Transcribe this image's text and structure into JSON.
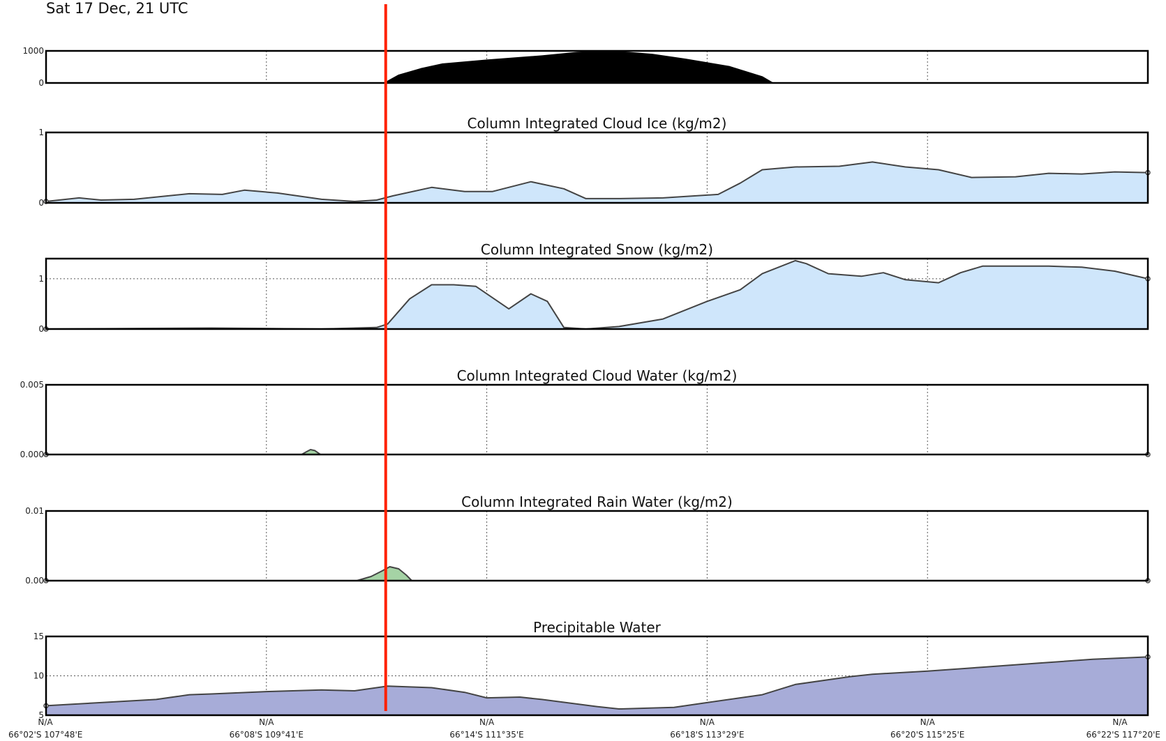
{
  "header": {
    "timestamp": "Sat 17 Dec, 21 UTC"
  },
  "chart_data": [
    {
      "type": "area",
      "title": "",
      "xlim": [
        0,
        100
      ],
      "ylim": [
        0,
        1000
      ],
      "yticks": [
        "0",
        "1000"
      ],
      "ytick_values": [
        0,
        1000
      ],
      "color": "#000000",
      "x": [
        0,
        30.7,
        31,
        32,
        34,
        36,
        40,
        45,
        48,
        50,
        52,
        55,
        58,
        62,
        65,
        66,
        70,
        100
      ],
      "values": [
        0,
        0,
        60,
        250,
        450,
        600,
        720,
        850,
        950,
        1000,
        980,
        900,
        750,
        520,
        200,
        0,
        0,
        0
      ]
    },
    {
      "type": "area",
      "title": "Column Integrated Cloud Ice (kg/m2)",
      "xlim": [
        0,
        100
      ],
      "ylim": [
        0,
        1
      ],
      "yticks": [
        "0",
        "1"
      ],
      "ytick_values": [
        0,
        1
      ],
      "color": "#cfe6fb",
      "x": [
        0,
        3,
        5,
        8,
        13,
        16,
        18,
        21,
        25,
        28,
        30,
        31.5,
        35,
        38,
        40.5,
        44,
        47,
        49,
        52,
        56,
        61,
        63,
        65,
        68,
        72,
        75,
        78,
        81,
        84,
        88,
        91,
        94,
        97,
        100
      ],
      "values": [
        0.02,
        0.07,
        0.04,
        0.05,
        0.13,
        0.12,
        0.18,
        0.14,
        0.05,
        0.02,
        0.04,
        0.1,
        0.22,
        0.16,
        0.16,
        0.3,
        0.2,
        0.06,
        0.06,
        0.07,
        0.12,
        0.28,
        0.47,
        0.51,
        0.52,
        0.58,
        0.51,
        0.47,
        0.36,
        0.37,
        0.42,
        0.41,
        0.44,
        0.43
      ]
    },
    {
      "type": "area",
      "title": "Column Integrated Snow (kg/m2)",
      "xlim": [
        0,
        100
      ],
      "ylim": [
        0,
        1.4
      ],
      "yticks": [
        "0",
        "1"
      ],
      "ytick_values": [
        0,
        1
      ],
      "color": "#cfe6fb",
      "x": [
        0,
        15,
        20,
        25,
        30,
        31,
        33,
        35,
        37,
        39,
        42,
        44,
        45.5,
        47,
        49,
        52,
        56,
        60,
        63,
        65,
        68,
        69,
        71,
        74,
        76,
        78,
        81,
        83,
        85,
        88,
        91,
        94,
        97,
        100
      ],
      "values": [
        0,
        0.02,
        0.01,
        0,
        0.03,
        0.1,
        0.6,
        0.88,
        0.88,
        0.85,
        0.4,
        0.7,
        0.55,
        0.03,
        0,
        0.05,
        0.2,
        0.55,
        0.78,
        1.1,
        1.36,
        1.3,
        1.1,
        1.05,
        1.12,
        0.98,
        0.92,
        1.12,
        1.25,
        1.25,
        1.25,
        1.23,
        1.15,
        1.0
      ]
    },
    {
      "type": "area",
      "title": "Column Integrated Cloud Water (kg/m2)",
      "xlim": [
        0,
        100
      ],
      "ylim": [
        0,
        0.005
      ],
      "yticks": [
        "0.000",
        "0.005"
      ],
      "ytick_values": [
        0,
        0.005
      ],
      "color": "#a5d3a5",
      "x": [
        0,
        23.2,
        23.6,
        24,
        24.4,
        24.9,
        100
      ],
      "values": [
        0,
        0,
        0.00018,
        0.00035,
        0.00028,
        0,
        0
      ]
    },
    {
      "type": "area",
      "title": "Column Integrated Rain Water (kg/m2)",
      "xlim": [
        0,
        100
      ],
      "ylim": [
        0,
        0.01
      ],
      "yticks": [
        "0.00",
        "0.01"
      ],
      "ytick_values": [
        0,
        0.01
      ],
      "color": "#a5d3a5",
      "x": [
        0,
        28.2,
        29.5,
        30.5,
        31.2,
        32,
        32.7,
        33.2,
        100
      ],
      "values": [
        0,
        0,
        0.0006,
        0.0014,
        0.002,
        0.0017,
        0.0008,
        0,
        0
      ]
    },
    {
      "type": "area",
      "title": "Precipitable Water",
      "xlim": [
        0,
        100
      ],
      "ylim": [
        5,
        15
      ],
      "yticks": [
        "5",
        "10",
        "15"
      ],
      "ytick_values": [
        5,
        10,
        15
      ],
      "color": "#a7acd8",
      "x": [
        0,
        5,
        10,
        13,
        15,
        20,
        25,
        28,
        31,
        35,
        38,
        40,
        43,
        45,
        50,
        52,
        57,
        60,
        65,
        68,
        73,
        75,
        80,
        85,
        90,
        95,
        100
      ],
      "values": [
        6.2,
        6.6,
        7.0,
        7.6,
        7.7,
        8.0,
        8.2,
        8.1,
        8.7,
        8.5,
        7.9,
        7.2,
        7.3,
        7.0,
        6.1,
        5.8,
        6.0,
        6.6,
        7.6,
        8.9,
        9.9,
        10.2,
        10.6,
        11.1,
        11.6,
        12.1,
        12.4
      ]
    }
  ],
  "x_axis": {
    "tick_positions": [
      0,
      20,
      40,
      60,
      80,
      100
    ],
    "top_labels": [
      "N/A",
      "N/A",
      "N/A",
      "N/A",
      "N/A",
      "N/A"
    ],
    "bottom_labels": [
      "66°02'S 107°48'E",
      "66°08'S 109°41'E",
      "66°14'S 111°35'E",
      "66°18'S 113°29'E",
      "66°20'S 115°25'E",
      "66°22'S 117°20'E"
    ]
  },
  "cursor": {
    "x": 30.7,
    "color": "#ff2200"
  }
}
